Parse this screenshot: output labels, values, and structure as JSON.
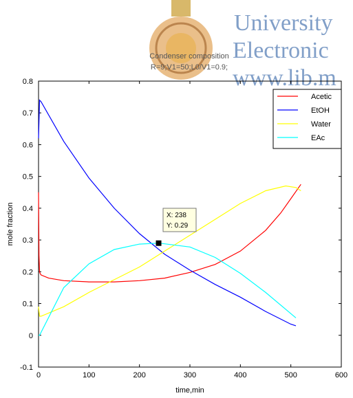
{
  "watermark": {
    "lines": [
      "University",
      "Electronic",
      "www.lib.m"
    ],
    "color": "#6c8fbf"
  },
  "chart_data": {
    "type": "line",
    "title": [
      "Condenser composition",
      "R=9;V1=50;L0/V1=0.9;"
    ],
    "xlabel": "time,min",
    "ylabel": "mole fraction",
    "xlim": [
      0,
      600
    ],
    "ylim": [
      -0.1,
      0.8
    ],
    "xticks": [
      0,
      100,
      200,
      300,
      400,
      500,
      600
    ],
    "yticks": [
      -0.1,
      0,
      0.1,
      0.2,
      0.3,
      0.4,
      0.5,
      0.6,
      0.7,
      0.8
    ],
    "legend_position": "top-right",
    "grid": false,
    "series": [
      {
        "name": "Acetic",
        "color": "#ff0000",
        "x": [
          0,
          1,
          2,
          3,
          5,
          20,
          50,
          100,
          150,
          200,
          250,
          300,
          350,
          400,
          450,
          480,
          500,
          520
        ],
        "y": [
          0.45,
          0.25,
          0.2,
          0.195,
          0.19,
          0.18,
          0.172,
          0.168,
          0.168,
          0.172,
          0.18,
          0.198,
          0.223,
          0.265,
          0.33,
          0.385,
          0.43,
          0.475
        ]
      },
      {
        "name": "EtOH",
        "color": "#0000ff",
        "x": [
          0,
          2,
          5,
          50,
          100,
          150,
          200,
          250,
          300,
          350,
          400,
          450,
          500,
          510
        ],
        "y": [
          0.62,
          0.74,
          0.735,
          0.61,
          0.495,
          0.4,
          0.32,
          0.255,
          0.205,
          0.16,
          0.12,
          0.075,
          0.035,
          0.03
        ]
      },
      {
        "name": "Water",
        "color": "#ffff00",
        "x": [
          0,
          2,
          5,
          50,
          100,
          150,
          200,
          250,
          300,
          350,
          400,
          450,
          490,
          510,
          520
        ],
        "y": [
          0.09,
          0.06,
          0.06,
          0.09,
          0.135,
          0.175,
          0.215,
          0.265,
          0.315,
          0.365,
          0.415,
          0.455,
          0.47,
          0.465,
          0.455
        ]
      },
      {
        "name": "EAc",
        "color": "#00ffff",
        "x": [
          0,
          2,
          50,
          100,
          150,
          200,
          238,
          250,
          300,
          350,
          400,
          450,
          510
        ],
        "y": [
          0.0,
          0.0,
          0.15,
          0.225,
          0.27,
          0.287,
          0.29,
          0.288,
          0.278,
          0.245,
          0.195,
          0.135,
          0.055
        ]
      }
    ],
    "datatip": {
      "x_label": "X: 238",
      "y_label": "Y: 0.29",
      "x": 238,
      "y": 0.29
    }
  }
}
